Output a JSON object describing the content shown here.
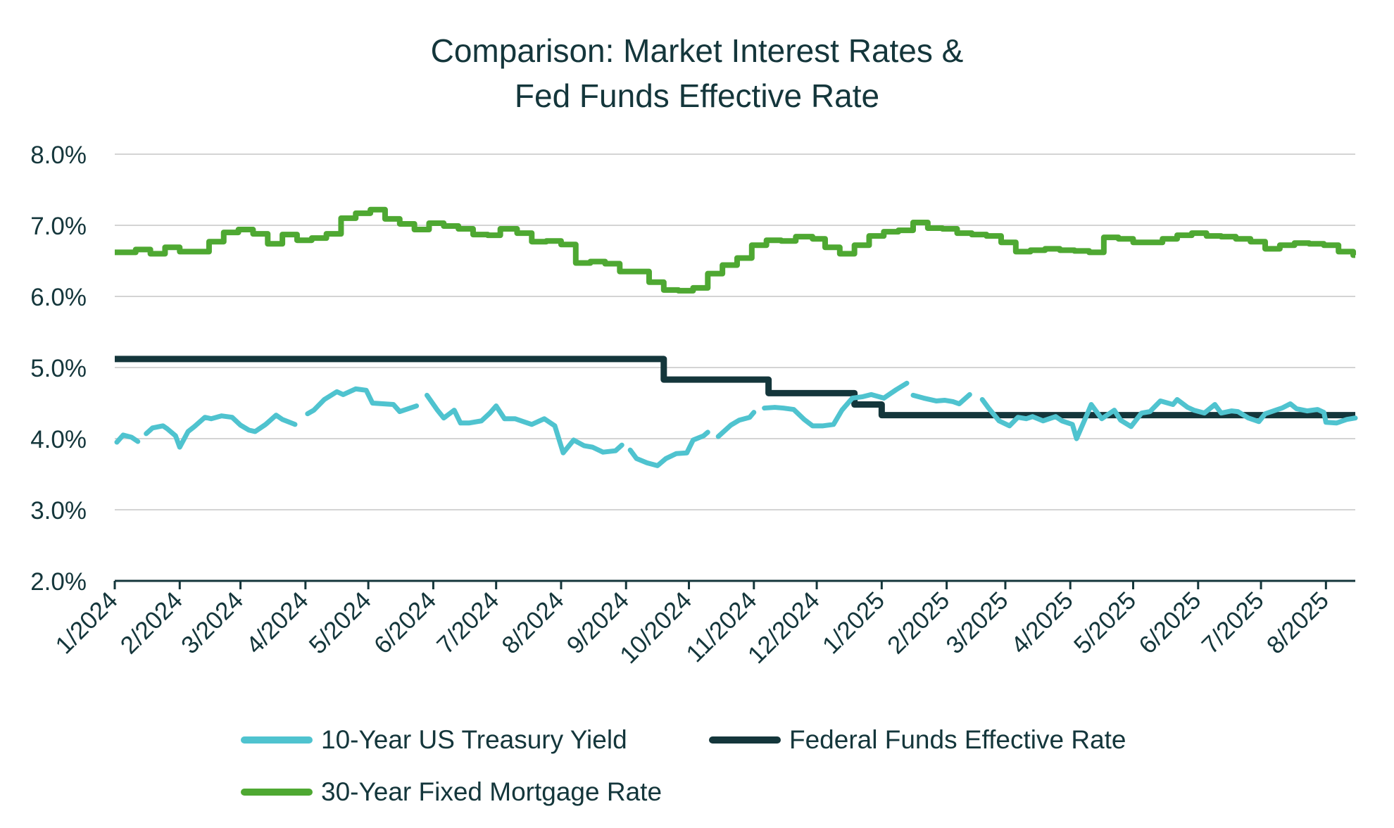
{
  "chart_data": {
    "type": "line",
    "title": [
      "Comparison: Market Interest Rates &",
      "Fed Funds Effective Rate"
    ],
    "xlabel": "",
    "ylabel": "",
    "ylim": [
      2.0,
      8.0
    ],
    "yticks": [
      2.0,
      3.0,
      4.0,
      5.0,
      6.0,
      7.0,
      8.0
    ],
    "ytick_labels": [
      "2.0%",
      "3.0%",
      "4.0%",
      "5.0%",
      "6.0%",
      "7.0%",
      "8.0%"
    ],
    "xlim": [
      "2024-01-01",
      "2025-08-15"
    ],
    "x_tick_dates": [
      "2024-01-01",
      "2024-02-01",
      "2024-03-01",
      "2024-04-01",
      "2024-05-01",
      "2024-06-01",
      "2024-07-01",
      "2024-08-01",
      "2024-09-01",
      "2024-10-01",
      "2024-11-01",
      "2024-12-01",
      "2025-01-01",
      "2025-02-01",
      "2025-03-01",
      "2025-04-01",
      "2025-05-01",
      "2025-06-01",
      "2025-07-01",
      "2025-08-01"
    ],
    "x_tick_labels": [
      "1/2024",
      "2/2024",
      "3/2024",
      "4/2024",
      "5/2024",
      "6/2024",
      "7/2024",
      "8/2024",
      "9/2024",
      "10/2024",
      "11/2024",
      "12/2024",
      "1/2025",
      "2/2025",
      "3/2025",
      "4/2025",
      "5/2025",
      "6/2025",
      "7/2025",
      "8/2025"
    ],
    "grid": "horizontal",
    "legend_position": "bottom",
    "series": [
      {
        "name": "10-Year US Treasury Yield",
        "color": "#4fc3cf",
        "points": [
          [
            "2024-01-02",
            3.95
          ],
          [
            "2024-01-05",
            4.05
          ],
          [
            "2024-01-09",
            4.02
          ],
          [
            "2024-01-12",
            3.96
          ],
          [
            "2024-01-16",
            4.07
          ],
          [
            "2024-01-19",
            4.15
          ],
          [
            "2024-01-24",
            4.18
          ],
          [
            "2024-01-26",
            4.14
          ],
          [
            "2024-01-30",
            4.04
          ],
          [
            "2024-02-01",
            3.88
          ],
          [
            "2024-02-05",
            4.1
          ],
          [
            "2024-02-08",
            4.17
          ],
          [
            "2024-02-13",
            4.3
          ],
          [
            "2024-02-16",
            4.28
          ],
          [
            "2024-02-21",
            4.32
          ],
          [
            "2024-02-26",
            4.3
          ],
          [
            "2024-03-01",
            4.19
          ],
          [
            "2024-03-05",
            4.12
          ],
          [
            "2024-03-08",
            4.1
          ],
          [
            "2024-03-13",
            4.2
          ],
          [
            "2024-03-18",
            4.33
          ],
          [
            "2024-03-21",
            4.27
          ],
          [
            "2024-03-27",
            4.2
          ],
          [
            "2024-04-02",
            4.35
          ],
          [
            "2024-04-05",
            4.4
          ],
          [
            "2024-04-10",
            4.55
          ],
          [
            "2024-04-16",
            4.66
          ],
          [
            "2024-04-19",
            4.62
          ],
          [
            "2024-04-25",
            4.7
          ],
          [
            "2024-04-30",
            4.68
          ],
          [
            "2024-05-03",
            4.5
          ],
          [
            "2024-05-08",
            4.49
          ],
          [
            "2024-05-13",
            4.48
          ],
          [
            "2024-05-16",
            4.38
          ],
          [
            "2024-05-21",
            4.43
          ],
          [
            "2024-05-24",
            4.46
          ],
          [
            "2024-05-29",
            4.61
          ],
          [
            "2024-06-03",
            4.4
          ],
          [
            "2024-06-06",
            4.29
          ],
          [
            "2024-06-11",
            4.4
          ],
          [
            "2024-06-14",
            4.22
          ],
          [
            "2024-06-18",
            4.22
          ],
          [
            "2024-06-24",
            4.25
          ],
          [
            "2024-06-28",
            4.36
          ],
          [
            "2024-07-01",
            4.46
          ],
          [
            "2024-07-05",
            4.28
          ],
          [
            "2024-07-10",
            4.28
          ],
          [
            "2024-07-15",
            4.23
          ],
          [
            "2024-07-18",
            4.2
          ],
          [
            "2024-07-24",
            4.28
          ],
          [
            "2024-07-29",
            4.18
          ],
          [
            "2024-08-02",
            3.8
          ],
          [
            "2024-08-07",
            3.98
          ],
          [
            "2024-08-12",
            3.9
          ],
          [
            "2024-08-16",
            3.88
          ],
          [
            "2024-08-21",
            3.81
          ],
          [
            "2024-08-27",
            3.83
          ],
          [
            "2024-08-30",
            3.91
          ],
          [
            "2024-09-03",
            3.84
          ],
          [
            "2024-09-06",
            3.72
          ],
          [
            "2024-09-11",
            3.66
          ],
          [
            "2024-09-16",
            3.62
          ],
          [
            "2024-09-20",
            3.72
          ],
          [
            "2024-09-25",
            3.79
          ],
          [
            "2024-09-30",
            3.8
          ],
          [
            "2024-10-03",
            3.98
          ],
          [
            "2024-10-08",
            4.04
          ],
          [
            "2024-10-10",
            4.09
          ],
          [
            "2024-10-15",
            4.03
          ],
          [
            "2024-10-21",
            4.19
          ],
          [
            "2024-10-25",
            4.26
          ],
          [
            "2024-10-30",
            4.3
          ],
          [
            "2024-11-01",
            4.37
          ],
          [
            "2024-11-06",
            4.43
          ],
          [
            "2024-11-11",
            4.44
          ],
          [
            "2024-11-15",
            4.43
          ],
          [
            "2024-11-20",
            4.41
          ],
          [
            "2024-11-25",
            4.27
          ],
          [
            "2024-11-29",
            4.18
          ],
          [
            "2024-12-04",
            4.18
          ],
          [
            "2024-12-09",
            4.2
          ],
          [
            "2024-12-13",
            4.4
          ],
          [
            "2024-12-18",
            4.57
          ],
          [
            "2024-12-23",
            4.59
          ],
          [
            "2024-12-27",
            4.62
          ],
          [
            "2025-01-02",
            4.57
          ],
          [
            "2025-01-08",
            4.69
          ],
          [
            "2025-01-13",
            4.78
          ],
          [
            "2025-01-16",
            4.61
          ],
          [
            "2025-01-21",
            4.57
          ],
          [
            "2025-01-27",
            4.53
          ],
          [
            "2025-01-31",
            4.54
          ],
          [
            "2025-02-04",
            4.52
          ],
          [
            "2025-02-07",
            4.49
          ],
          [
            "2025-02-12",
            4.62
          ],
          [
            "2025-02-18",
            4.55
          ],
          [
            "2025-02-21",
            4.43
          ],
          [
            "2025-02-26",
            4.25
          ],
          [
            "2025-03-03",
            4.18
          ],
          [
            "2025-03-07",
            4.3
          ],
          [
            "2025-03-11",
            4.28
          ],
          [
            "2025-03-14",
            4.31
          ],
          [
            "2025-03-19",
            4.25
          ],
          [
            "2025-03-25",
            4.31
          ],
          [
            "2025-03-28",
            4.25
          ],
          [
            "2025-04-02",
            4.2
          ],
          [
            "2025-04-04",
            4.0
          ],
          [
            "2025-04-09",
            4.34
          ],
          [
            "2025-04-11",
            4.48
          ],
          [
            "2025-04-16",
            4.28
          ],
          [
            "2025-04-22",
            4.4
          ],
          [
            "2025-04-25",
            4.26
          ],
          [
            "2025-04-30",
            4.17
          ],
          [
            "2025-05-05",
            4.36
          ],
          [
            "2025-05-09",
            4.38
          ],
          [
            "2025-05-14",
            4.53
          ],
          [
            "2025-05-20",
            4.48
          ],
          [
            "2025-05-22",
            4.55
          ],
          [
            "2025-05-27",
            4.44
          ],
          [
            "2025-05-30",
            4.4
          ],
          [
            "2025-06-04",
            4.36
          ],
          [
            "2025-06-09",
            4.48
          ],
          [
            "2025-06-12",
            4.36
          ],
          [
            "2025-06-17",
            4.39
          ],
          [
            "2025-06-20",
            4.38
          ],
          [
            "2025-06-25",
            4.29
          ],
          [
            "2025-06-30",
            4.24
          ],
          [
            "2025-07-03",
            4.35
          ],
          [
            "2025-07-08",
            4.4
          ],
          [
            "2025-07-11",
            4.43
          ],
          [
            "2025-07-15",
            4.49
          ],
          [
            "2025-07-18",
            4.42
          ],
          [
            "2025-07-23",
            4.39
          ],
          [
            "2025-07-28",
            4.41
          ],
          [
            "2025-07-31",
            4.37
          ],
          [
            "2025-08-01",
            4.23
          ],
          [
            "2025-08-06",
            4.22
          ],
          [
            "2025-08-11",
            4.27
          ],
          [
            "2025-08-15",
            4.29
          ]
        ],
        "gaps_after": [
          "2024-01-12",
          "2024-03-27",
          "2024-05-24",
          "2024-08-30",
          "2024-10-10",
          "2024-11-01",
          "2025-01-13",
          "2025-02-12"
        ]
      },
      {
        "name": "Federal Funds Effective Rate",
        "color": "#14363b",
        "steps": [
          [
            "2024-01-01",
            5.12
          ],
          [
            "2024-09-19",
            4.83
          ],
          [
            "2024-11-08",
            4.64
          ],
          [
            "2024-12-19",
            4.48
          ],
          [
            "2025-01-01",
            4.33
          ],
          [
            "2025-08-15",
            4.33
          ]
        ]
      },
      {
        "name": "30-Year Fixed Mortgage Rate",
        "color": "#4ea832",
        "steps": [
          [
            "2024-01-01",
            6.62
          ],
          [
            "2024-01-11",
            6.66
          ],
          [
            "2024-01-18",
            6.6
          ],
          [
            "2024-01-25",
            6.69
          ],
          [
            "2024-02-01",
            6.63
          ],
          [
            "2024-02-15",
            6.77
          ],
          [
            "2024-02-22",
            6.9
          ],
          [
            "2024-02-29",
            6.94
          ],
          [
            "2024-03-07",
            6.88
          ],
          [
            "2024-03-14",
            6.74
          ],
          [
            "2024-03-21",
            6.87
          ],
          [
            "2024-03-28",
            6.79
          ],
          [
            "2024-04-04",
            6.82
          ],
          [
            "2024-04-11",
            6.88
          ],
          [
            "2024-04-18",
            7.1
          ],
          [
            "2024-04-25",
            7.17
          ],
          [
            "2024-05-02",
            7.22
          ],
          [
            "2024-05-09",
            7.09
          ],
          [
            "2024-05-16",
            7.02
          ],
          [
            "2024-05-23",
            6.94
          ],
          [
            "2024-05-30",
            7.03
          ],
          [
            "2024-06-06",
            6.99
          ],
          [
            "2024-06-13",
            6.95
          ],
          [
            "2024-06-20",
            6.87
          ],
          [
            "2024-06-27",
            6.86
          ],
          [
            "2024-07-03",
            6.95
          ],
          [
            "2024-07-11",
            6.89
          ],
          [
            "2024-07-18",
            6.77
          ],
          [
            "2024-07-25",
            6.78
          ],
          [
            "2024-08-01",
            6.73
          ],
          [
            "2024-08-08",
            6.47
          ],
          [
            "2024-08-15",
            6.49
          ],
          [
            "2024-08-22",
            6.46
          ],
          [
            "2024-08-29",
            6.35
          ],
          [
            "2024-09-05",
            6.35
          ],
          [
            "2024-09-12",
            6.2
          ],
          [
            "2024-09-19",
            6.09
          ],
          [
            "2024-09-26",
            6.08
          ],
          [
            "2024-10-03",
            6.12
          ],
          [
            "2024-10-10",
            6.32
          ],
          [
            "2024-10-17",
            6.44
          ],
          [
            "2024-10-24",
            6.54
          ],
          [
            "2024-10-31",
            6.72
          ],
          [
            "2024-11-07",
            6.79
          ],
          [
            "2024-11-14",
            6.78
          ],
          [
            "2024-11-21",
            6.84
          ],
          [
            "2024-11-29",
            6.81
          ],
          [
            "2024-12-05",
            6.69
          ],
          [
            "2024-12-12",
            6.6
          ],
          [
            "2024-12-19",
            6.72
          ],
          [
            "2024-12-26",
            6.85
          ],
          [
            "2025-01-02",
            6.91
          ],
          [
            "2025-01-09",
            6.93
          ],
          [
            "2025-01-16",
            7.04
          ],
          [
            "2025-01-23",
            6.96
          ],
          [
            "2025-01-30",
            6.95
          ],
          [
            "2025-02-06",
            6.89
          ],
          [
            "2025-02-13",
            6.87
          ],
          [
            "2025-02-20",
            6.85
          ],
          [
            "2025-02-27",
            6.76
          ],
          [
            "2025-03-06",
            6.63
          ],
          [
            "2025-03-13",
            6.65
          ],
          [
            "2025-03-20",
            6.67
          ],
          [
            "2025-03-27",
            6.65
          ],
          [
            "2025-04-03",
            6.64
          ],
          [
            "2025-04-10",
            6.62
          ],
          [
            "2025-04-17",
            6.83
          ],
          [
            "2025-04-24",
            6.81
          ],
          [
            "2025-05-01",
            6.76
          ],
          [
            "2025-05-08",
            6.76
          ],
          [
            "2025-05-15",
            6.81
          ],
          [
            "2025-05-22",
            6.86
          ],
          [
            "2025-05-29",
            6.89
          ],
          [
            "2025-06-05",
            6.85
          ],
          [
            "2025-06-12",
            6.84
          ],
          [
            "2025-06-19",
            6.81
          ],
          [
            "2025-06-26",
            6.77
          ],
          [
            "2025-07-03",
            6.67
          ],
          [
            "2025-07-10",
            6.72
          ],
          [
            "2025-07-17",
            6.75
          ],
          [
            "2025-07-24",
            6.74
          ],
          [
            "2025-07-31",
            6.72
          ],
          [
            "2025-08-07",
            6.63
          ],
          [
            "2025-08-14",
            6.58
          ],
          [
            "2025-08-15",
            6.58
          ]
        ]
      }
    ]
  }
}
